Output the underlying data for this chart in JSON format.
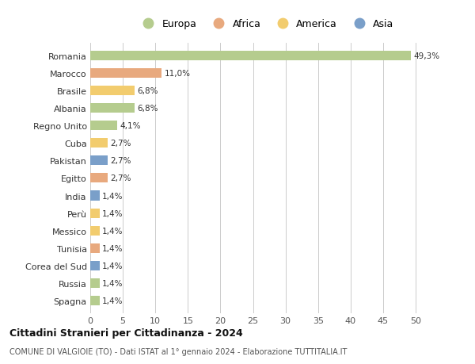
{
  "countries": [
    "Romania",
    "Marocco",
    "Brasile",
    "Albania",
    "Regno Unito",
    "Cuba",
    "Pakistan",
    "Egitto",
    "India",
    "Perù",
    "Messico",
    "Tunisia",
    "Corea del Sud",
    "Russia",
    "Spagna"
  ],
  "values": [
    49.3,
    11.0,
    6.8,
    6.8,
    4.1,
    2.7,
    2.7,
    2.7,
    1.4,
    1.4,
    1.4,
    1.4,
    1.4,
    1.4,
    1.4
  ],
  "labels": [
    "49,3%",
    "11,0%",
    "6,8%",
    "6,8%",
    "4,1%",
    "2,7%",
    "2,7%",
    "2,7%",
    "1,4%",
    "1,4%",
    "1,4%",
    "1,4%",
    "1,4%",
    "1,4%",
    "1,4%"
  ],
  "continents": [
    "Europa",
    "Africa",
    "America",
    "Europa",
    "Europa",
    "America",
    "Asia",
    "Africa",
    "Asia",
    "America",
    "America",
    "Africa",
    "Asia",
    "Europa",
    "Europa"
  ],
  "colors": {
    "Europa": "#b5cc8e",
    "Africa": "#e8a97e",
    "America": "#f2cc6e",
    "Asia": "#7a9fc9"
  },
  "title": "Cittadini Stranieri per Cittadinanza - 2024",
  "subtitle": "COMUNE DI VALGIOIE (TO) - Dati ISTAT al 1° gennaio 2024 - Elaborazione TUTTITALIA.IT",
  "xlabel_ticks": [
    0,
    5,
    10,
    15,
    20,
    25,
    30,
    35,
    40,
    45,
    50
  ],
  "background_color": "#ffffff",
  "grid_color": "#cccccc",
  "bar_height": 0.55
}
